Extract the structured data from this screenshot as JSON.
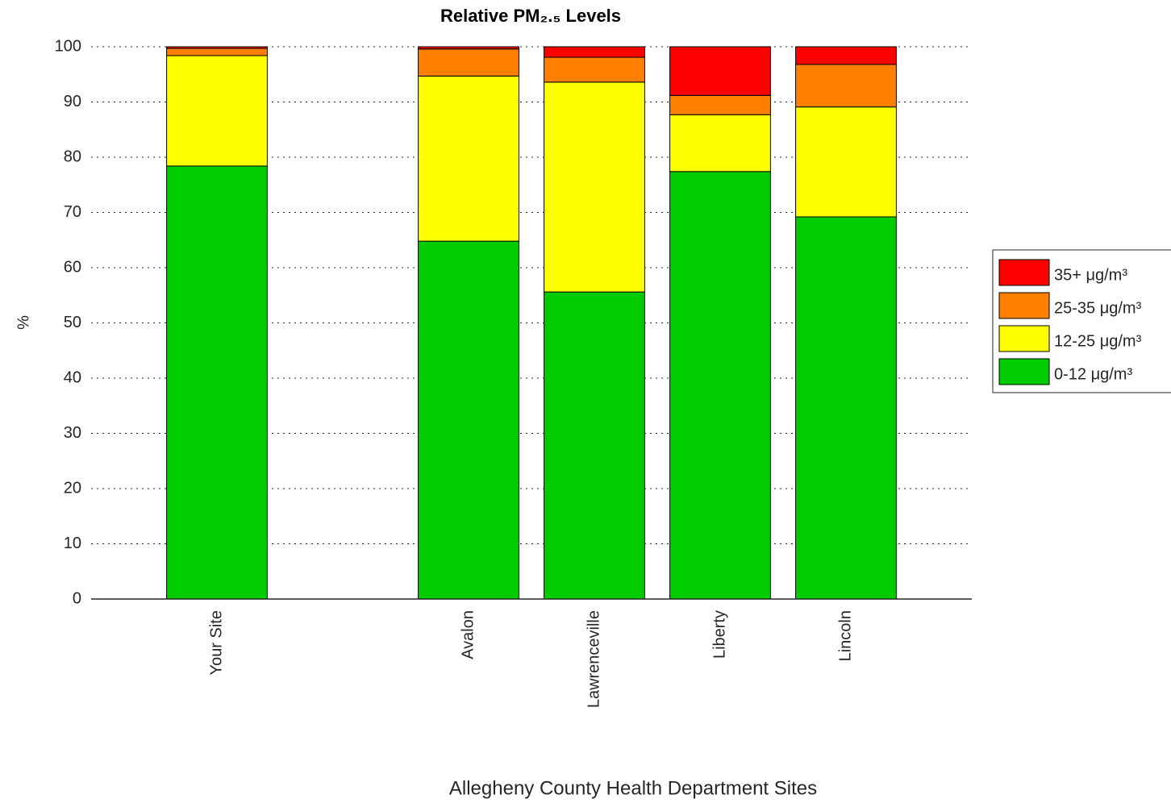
{
  "chart_data": {
    "type": "bar",
    "stacked": true,
    "title": "Relative PM₂.₅ Levels",
    "y_label": "%",
    "x_label": "Allegheny County Health Department Sites",
    "categories": [
      "Your Site",
      "Avalon",
      "Lawrenceville",
      "Liberty",
      "Lincoln"
    ],
    "x": [
      1,
      3,
      4,
      5,
      6
    ],
    "xlim": [
      0,
      7
    ],
    "ylim": [
      0,
      100
    ],
    "yticks": [
      0,
      10,
      20,
      30,
      40,
      50,
      60,
      70,
      80,
      90,
      100
    ],
    "grid": true,
    "legend": "right",
    "series": [
      {
        "name": "0-12 μg/m³",
        "color": "#00cc00",
        "values": [
          78.4,
          64.8,
          55.6,
          77.4,
          69.2
        ]
      },
      {
        "name": "12-25 μg/m³",
        "color": "#ffff00",
        "values": [
          20.0,
          29.9,
          38.0,
          10.3,
          19.9
        ]
      },
      {
        "name": "25-35 μg/m³",
        "color": "#ff8000",
        "values": [
          1.3,
          4.9,
          4.5,
          3.5,
          7.7
        ]
      },
      {
        "name": "35+ μg/m³",
        "color": "#ff0000",
        "values": [
          0.3,
          0.4,
          1.9,
          8.8,
          3.2
        ]
      }
    ]
  }
}
